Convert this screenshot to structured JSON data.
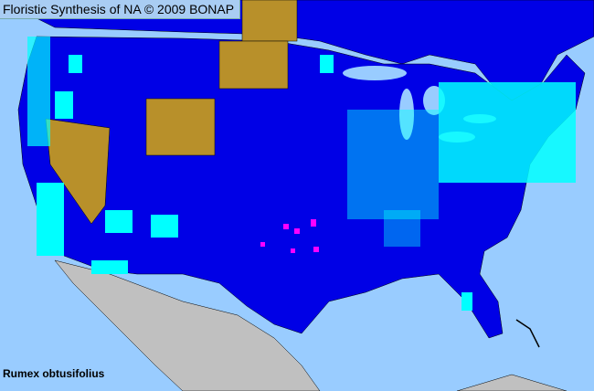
{
  "header": {
    "title": "Floristic Synthesis of NA © 2009 BONAP"
  },
  "map": {
    "species_label": "Rumex obtusifolius",
    "colors": {
      "ocean": "#99ccff",
      "present_county": "#00ffff",
      "state_present_no_county_data": "#0000e6",
      "adventive_state": "#b8902a",
      "rare_or_noxious": "#ff00ff",
      "mexico": "#c0c0c0",
      "border": "#000000"
    }
  }
}
